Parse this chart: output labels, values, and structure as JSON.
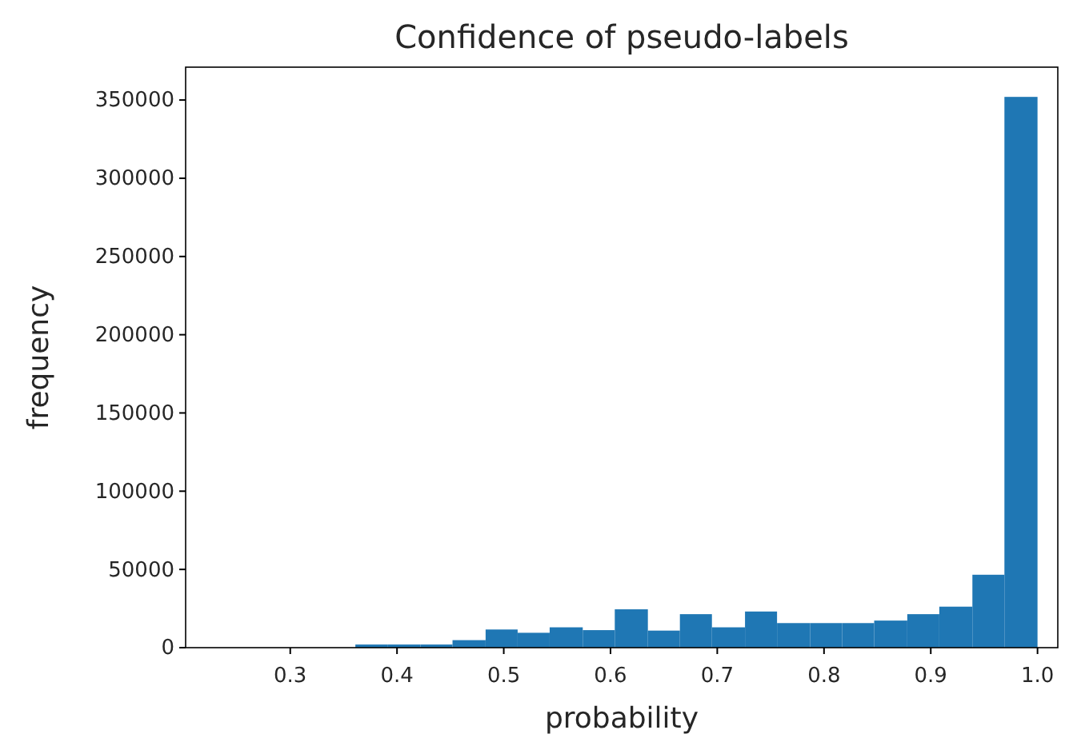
{
  "chart_data": {
    "type": "histogram",
    "title": "Confidence of pseudo-labels",
    "xlabel": "probability",
    "ylabel": "frequency",
    "bins": [
      0.361,
      0.391,
      0.422,
      0.452,
      0.483,
      0.513,
      0.543,
      0.574,
      0.604,
      0.635,
      0.665,
      0.695,
      0.726,
      0.756,
      0.787,
      0.817,
      0.847,
      0.878,
      0.908,
      0.939,
      0.969,
      1.0
    ],
    "values": [
      2000,
      2000,
      2000,
      4800,
      11600,
      9500,
      13000,
      11200,
      24500,
      10900,
      21400,
      13000,
      23100,
      15700,
      15700,
      15700,
      17300,
      21400,
      26200,
      46600,
      352000
    ],
    "color": "#1f77b4",
    "xlim": [
      0.202,
      1.019
    ],
    "xticks": [
      {
        "value": 0.3,
        "label": "0.3"
      },
      {
        "value": 0.4,
        "label": "0.4"
      },
      {
        "value": 0.5,
        "label": "0.5"
      },
      {
        "value": 0.6,
        "label": "0.6"
      },
      {
        "value": 0.7,
        "label": "0.7"
      },
      {
        "value": 0.8,
        "label": "0.8"
      },
      {
        "value": 0.9,
        "label": "0.9"
      },
      {
        "value": 1.0,
        "label": "1.0"
      }
    ],
    "ylim": [
      0,
      371000
    ],
    "yticks": [
      0,
      50000,
      100000,
      150000,
      200000,
      250000,
      300000,
      350000
    ],
    "grid": false
  }
}
